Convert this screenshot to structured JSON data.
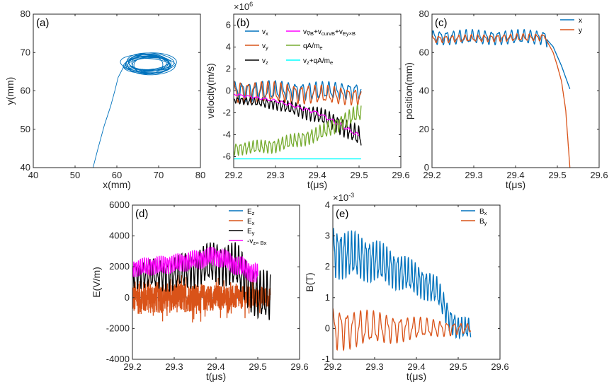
{
  "figure": {
    "title": ""
  },
  "chart_data": [
    {
      "panel": "(a)",
      "type": "line",
      "xlabel": "x(mm)",
      "ylabel": "y(mm)",
      "xlim": [
        40,
        80
      ],
      "ylim": [
        40,
        80
      ],
      "xticks": [
        40,
        50,
        60,
        70,
        80
      ],
      "yticks": [
        40,
        50,
        60,
        70,
        80
      ],
      "series": [
        {
          "name": "trajectory",
          "color": "#0072BD",
          "kind": "orbit",
          "approach": {
            "x": [
              54.3,
              55.5,
              57,
              58.5,
              59.5,
              60.3,
              61.5
            ],
            "y": [
              40,
              45,
              51,
              56,
              60,
              63.5,
              66
            ]
          },
          "center": [
            67.5,
            67
          ],
          "rx": 6,
          "ry": 2.5,
          "turns": 14
        }
      ]
    },
    {
      "panel": "(b)",
      "type": "line",
      "xlabel": "t(μs)",
      "ylabel": "velocity(m/s)",
      "exponent": "×10^6",
      "xlim": [
        29.2,
        29.6
      ],
      "ylim": [
        -7,
        7
      ],
      "xticks": [
        29.2,
        29.3,
        29.4,
        29.5,
        29.6
      ],
      "yticks": [
        -6,
        -4,
        -2,
        0,
        2,
        4,
        6
      ],
      "legend_position": "top",
      "series": [
        {
          "name": "v_x",
          "color": "#0072BD",
          "t0": 29.2,
          "t1": 29.505,
          "trend": {
            "t": [
              29.2,
              29.5
            ],
            "v": [
              0,
              0
            ]
          },
          "amp": [
            1.0,
            0.8
          ],
          "period": 0.016
        },
        {
          "name": "v_y",
          "color": "#D95319",
          "t0": 29.2,
          "t1": 29.505,
          "trend": {
            "t": [
              29.2,
              29.5
            ],
            "v": [
              0,
              -0.5
            ]
          },
          "amp": [
            1.1,
            0.8
          ],
          "period": 0.016
        },
        {
          "name": "v_z",
          "color": "#000000",
          "t0": 29.2,
          "t1": 29.505,
          "trend": {
            "t": [
              29.2,
              29.3,
              29.4,
              29.45,
              29.5
            ],
            "v": [
              -0.8,
              -1.2,
              -2.2,
              -3.0,
              -4.2
            ]
          },
          "amp": [
            0.3,
            1.0
          ],
          "period": 0.01
        },
        {
          "name": "v_∇B+v_curvB+v_E_y×B",
          "color": "#FF00FF",
          "t0": 29.2,
          "t1": 29.5,
          "trend": {
            "t": [
              29.2,
              29.3,
              29.4,
              29.45,
              29.5
            ],
            "v": [
              -0.3,
              -0.9,
              -2.0,
              -3.0,
              -4.1
            ]
          },
          "amp": [
            0.1,
            0.2
          ],
          "period": 0.02
        },
        {
          "name": "qA/m_e",
          "color": "#77AC30",
          "t0": 29.2,
          "t1": 29.505,
          "trend": {
            "t": [
              29.2,
              29.3,
              29.4,
              29.5
            ],
            "v": [
              -5.3,
              -5.0,
              -4.0,
              -2.0
            ]
          },
          "amp": [
            0.6,
            0.8
          ],
          "period": 0.01
        },
        {
          "name": "v_z+qA/m_e",
          "color": "#00FFFF",
          "t0": 29.2,
          "t1": 29.505,
          "trend": {
            "t": [
              29.2,
              29.5
            ],
            "v": [
              -6.2,
              -6.2
            ]
          },
          "amp": [
            0,
            0
          ],
          "period": 0.02
        }
      ]
    },
    {
      "panel": "(c)",
      "type": "line",
      "xlabel": "t(μs)",
      "ylabel": "position(mm)",
      "xlim": [
        29.2,
        29.6
      ],
      "ylim": [
        0,
        80
      ],
      "xticks": [
        29.2,
        29.3,
        29.4,
        29.5,
        29.6
      ],
      "yticks": [
        0,
        20,
        40,
        60,
        80
      ],
      "legend_position": "top-right",
      "series": [
        {
          "name": "x",
          "color": "#0072BD",
          "t0": 29.2,
          "t1": 29.53,
          "trend": {
            "t": [
              29.2,
              29.47,
              29.49,
              29.5,
              29.51,
              29.52,
              29.53
            ],
            "v": [
              68,
              68,
              63,
              58,
              53,
              47,
              41
            ]
          },
          "amp": [
            4,
            4
          ],
          "period": 0.0155,
          "osc_end": 29.475
        },
        {
          "name": "y",
          "color": "#D95319",
          "t0": 29.2,
          "t1": 29.53,
          "trend": {
            "t": [
              29.2,
              29.47,
              29.49,
              29.5,
              29.51,
              29.52,
              29.53
            ],
            "v": [
              67,
              68,
              60,
              53,
              45,
              30,
              0
            ]
          },
          "amp": [
            2,
            2
          ],
          "period": 0.0155,
          "osc_end": 29.47
        }
      ]
    },
    {
      "panel": "(d)",
      "type": "line",
      "xlabel": "t(μs)",
      "ylabel": "E(V/m)",
      "xlim": [
        29.2,
        29.6
      ],
      "ylim": [
        -4000,
        6000
      ],
      "xticks": [
        29.2,
        29.3,
        29.4,
        29.5,
        29.6
      ],
      "yticks": [
        -4000,
        -2000,
        0,
        2000,
        4000,
        6000
      ],
      "legend_position": "top-right",
      "series": [
        {
          "name": "E_z",
          "color": "#0072BD",
          "t0": 29.2,
          "t1": 29.53,
          "trend": {
            "t": [
              29.2,
              29.53
            ],
            "v": [
              0,
              0
            ]
          },
          "amp": [
            60,
            60
          ],
          "period": 0.02
        },
        {
          "name": "E_x",
          "color": "#D95319",
          "t0": 29.2,
          "t1": 29.53,
          "trend": {
            "t": [
              29.2,
              29.53
            ],
            "v": [
              0,
              0
            ]
          },
          "amp": [
            1500,
            900
          ],
          "period": 0.003,
          "noise": true
        },
        {
          "name": "E_y",
          "color": "#000000",
          "t0": 29.2,
          "t1": 29.53,
          "trend": {
            "t": [
              29.2,
              29.3,
              29.4,
              29.45,
              29.5,
              29.53
            ],
            "v": [
              1500,
              1500,
              2300,
              2000,
              100,
              0
            ]
          },
          "amp": [
            900,
            1800
          ],
          "period": 0.0085
        },
        {
          "name": "-v_z× B_x",
          "color": "#FF00FF",
          "t0": 29.2,
          "t1": 29.5,
          "trend": {
            "t": [
              29.2,
              29.3,
              29.4,
              29.5
            ],
            "v": [
              1900,
              2200,
              2700,
              1500
            ]
          },
          "amp": [
            600,
            700
          ],
          "period": 0.005
        }
      ]
    },
    {
      "panel": "(e)",
      "type": "line",
      "xlabel": "t(μs)",
      "ylabel": "B(T)",
      "exponent": "×10^-3",
      "xlim": [
        29.2,
        29.6
      ],
      "ylim": [
        -1,
        4
      ],
      "xticks": [
        29.2,
        29.3,
        29.4,
        29.5,
        29.6
      ],
      "yticks": [
        -1,
        0,
        1,
        2,
        3,
        4
      ],
      "legend_position": "top-right",
      "series": [
        {
          "name": "B_x",
          "color": "#0072BD",
          "t0": 29.2,
          "t1": 29.53,
          "trend": {
            "t": [
              29.2,
              29.3,
              29.4,
              29.45,
              29.48,
              29.5,
              29.53
            ],
            "v": [
              2.5,
              2.2,
              1.6,
              1.2,
              0.3,
              0,
              0
            ]
          },
          "amp": [
            0.9,
            0.35
          ],
          "period": 0.0085
        },
        {
          "name": "B_y",
          "color": "#D95319",
          "t0": 29.2,
          "t1": 29.53,
          "trend": {
            "t": [
              29.2,
              29.4,
              29.48,
              29.53
            ],
            "v": [
              0,
              0,
              0,
              0
            ]
          },
          "amp": [
            0.75,
            0.15
          ],
          "period": 0.016
        }
      ]
    }
  ]
}
